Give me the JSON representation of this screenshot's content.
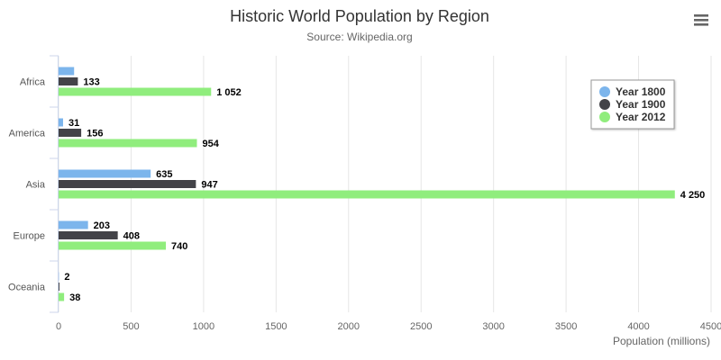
{
  "chart_data": {
    "type": "bar",
    "orientation": "horizontal",
    "title": "Historic World Population by Region",
    "subtitle": "Source: Wikipedia.org",
    "xlabel": "Population (millions)",
    "ylabel": "",
    "categories": [
      "Africa",
      "America",
      "Asia",
      "Europe",
      "Oceania"
    ],
    "series": [
      {
        "name": "Year 1800",
        "color": "#7cb5ec",
        "values": [
          107,
          31,
          635,
          203,
          2
        ]
      },
      {
        "name": "Year 1900",
        "color": "#434348",
        "values": [
          133,
          156,
          947,
          408,
          6
        ]
      },
      {
        "name": "Year 2012",
        "color": "#90ed7d",
        "values": [
          1052,
          954,
          4250,
          740,
          38
        ]
      }
    ],
    "data_labels": [
      [
        "",
        "31",
        "635",
        "203",
        "2"
      ],
      [
        "133",
        "156",
        "947",
        "408",
        ""
      ],
      [
        "1 052",
        "954",
        "4 250",
        "740",
        "38"
      ]
    ],
    "xlim": [
      0,
      4500
    ],
    "xticks": [
      0,
      500,
      1000,
      1500,
      2000,
      2500,
      3000,
      3500,
      4000,
      4500
    ],
    "grid": true,
    "legend_position": "top-right"
  },
  "menu": {
    "icon": "hamburger-menu-icon"
  }
}
